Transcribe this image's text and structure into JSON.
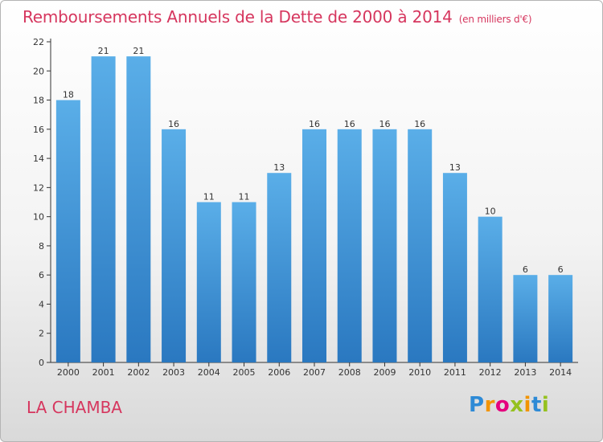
{
  "header": {
    "title": "Remboursements Annuels de la Dette de 2000 à 2014",
    "unit": "(en milliers d'€)"
  },
  "footer": {
    "commune": "LA CHAMBA",
    "logo_text": "Proxiti",
    "logo_letters": [
      "P",
      "r",
      "o",
      "x",
      "i",
      "t",
      "i"
    ]
  },
  "chart_data": {
    "type": "bar",
    "title": "Remboursements Annuels de la Dette de 2000 à 2014",
    "subtitle": "(en milliers d'€)",
    "categories": [
      "2000",
      "2001",
      "2002",
      "2003",
      "2004",
      "2005",
      "2006",
      "2007",
      "2008",
      "2009",
      "2010",
      "2011",
      "2012",
      "2013",
      "2014"
    ],
    "values": [
      18,
      21,
      21,
      16,
      11,
      11,
      13,
      16,
      16,
      16,
      16,
      13,
      10,
      6,
      6
    ],
    "ylim": [
      0,
      22
    ],
    "yticks": [
      0,
      2,
      4,
      6,
      8,
      10,
      12,
      14,
      16,
      18,
      20,
      22
    ],
    "grid": false,
    "bar_color": "#4a9fe0",
    "bar_color_dark": "#2a78c0"
  },
  "colors": {
    "accent": "#d6365e",
    "axis": "#333333"
  }
}
